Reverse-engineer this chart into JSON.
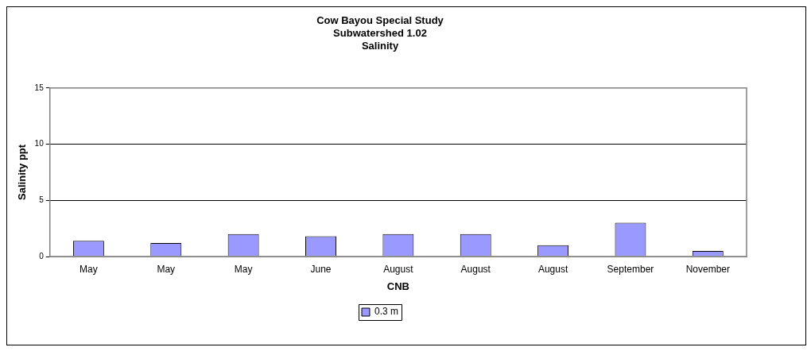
{
  "chart_data": {
    "type": "bar",
    "title": "Cow Bayou Special Study\nSubwatershed 1.02\nSalinity",
    "xlabel": "CNB",
    "ylabel": "Salinity ppt",
    "categories": [
      "May",
      "May",
      "May",
      "June",
      "August",
      "August",
      "August",
      "September",
      "November"
    ],
    "series": [
      {
        "name": "0.3 m",
        "color": "#9999ff",
        "values": [
          1.4,
          1.2,
          2.0,
          1.8,
          2.0,
          2.0,
          1.0,
          3.0,
          0.5
        ]
      }
    ],
    "ylim": [
      0,
      15
    ],
    "yticks": [
      0,
      5,
      10,
      15
    ],
    "grid": "y",
    "legend": "bottom"
  }
}
